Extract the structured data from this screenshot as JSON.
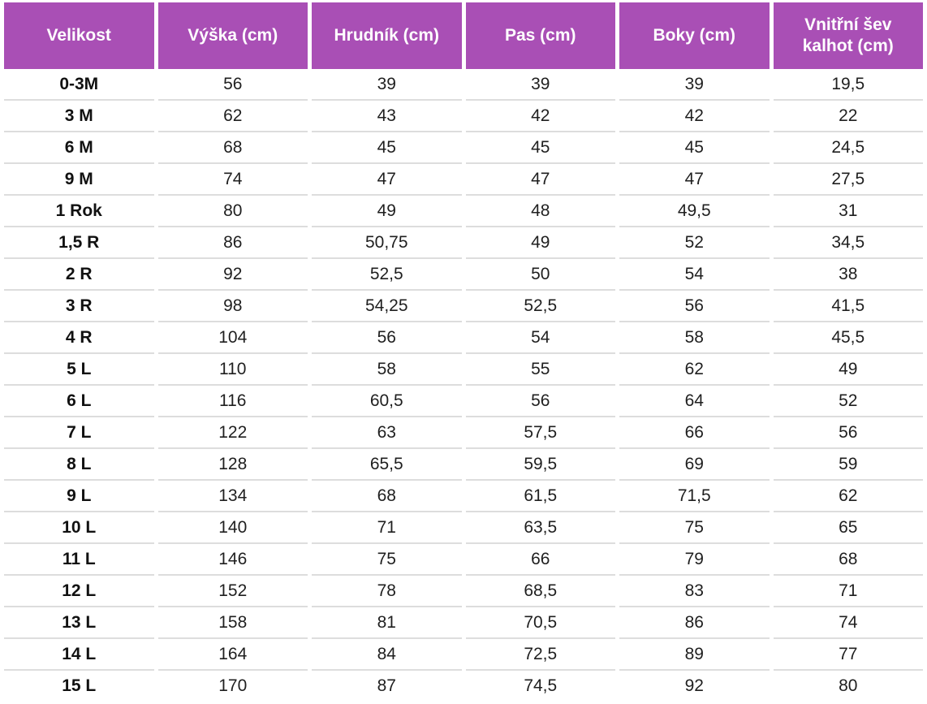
{
  "colors": {
    "header_bg": "#a94fb5",
    "header_text": "#ffffff",
    "row_divider": "#dddddd",
    "body_text": "#1f1f1f",
    "background": "#ffffff"
  },
  "chart_data": {
    "type": "table",
    "title": "",
    "columns": [
      "Velikost",
      "Výška (cm)",
      "Hrudník (cm)",
      "Pas (cm)",
      "Boky (cm)",
      "Vnitřní šev kalhot (cm)"
    ],
    "rows": [
      [
        "0-3M",
        "56",
        "39",
        "39",
        "39",
        "19,5"
      ],
      [
        "3 M",
        "62",
        "43",
        "42",
        "42",
        "22"
      ],
      [
        "6 M",
        "68",
        "45",
        "45",
        "45",
        "24,5"
      ],
      [
        "9 M",
        "74",
        "47",
        "47",
        "47",
        "27,5"
      ],
      [
        "1 Rok",
        "80",
        "49",
        "48",
        "49,5",
        "31"
      ],
      [
        "1,5 R",
        "86",
        "50,75",
        "49",
        "52",
        "34,5"
      ],
      [
        "2 R",
        "92",
        "52,5",
        "50",
        "54",
        "38"
      ],
      [
        "3 R",
        "98",
        "54,25",
        "52,5",
        "56",
        "41,5"
      ],
      [
        "4 R",
        "104",
        "56",
        "54",
        "58",
        "45,5"
      ],
      [
        "5 L",
        "110",
        "58",
        "55",
        "62",
        "49"
      ],
      [
        "6 L",
        "116",
        "60,5",
        "56",
        "64",
        "52"
      ],
      [
        "7 L",
        "122",
        "63",
        "57,5",
        "66",
        "56"
      ],
      [
        "8 L",
        "128",
        "65,5",
        "59,5",
        "69",
        "59"
      ],
      [
        "9 L",
        "134",
        "68",
        "61,5",
        "71,5",
        "62"
      ],
      [
        "10 L",
        "140",
        "71",
        "63,5",
        "75",
        "65"
      ],
      [
        "11 L",
        "146",
        "75",
        "66",
        "79",
        "68"
      ],
      [
        "12 L",
        "152",
        "78",
        "68,5",
        "83",
        "71"
      ],
      [
        "13 L",
        "158",
        "81",
        "70,5",
        "86",
        "74"
      ],
      [
        "14 L",
        "164",
        "84",
        "72,5",
        "89",
        "77"
      ],
      [
        "15 L",
        "170",
        "87",
        "74,5",
        "92",
        "80"
      ]
    ]
  }
}
